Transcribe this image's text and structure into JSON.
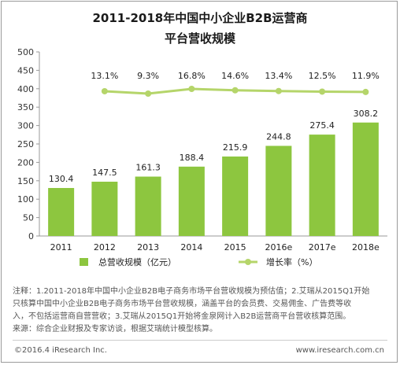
{
  "chart_data": {
    "type": "bar",
    "title_line1": "2011-2018年中国中小企业B2B运营商",
    "title_line2": "平台营收规模",
    "categories": [
      "2011",
      "2012",
      "2013",
      "2014",
      "2015",
      "2016e",
      "2017e",
      "2018e"
    ],
    "series": [
      {
        "name": "总营收规模（亿元）",
        "type": "bar",
        "values": [
          130.4,
          147.5,
          161.3,
          188.4,
          215.9,
          244.8,
          275.4,
          308.2
        ],
        "labels": [
          "130.4",
          "147.5",
          "161.3",
          "188.4",
          "215.9",
          "244.8",
          "275.4",
          "308.2"
        ]
      },
      {
        "name": "增长率（%）",
        "type": "line",
        "values": [
          null,
          13.1,
          9.3,
          16.8,
          14.6,
          13.4,
          12.5,
          11.9
        ],
        "labels": [
          "",
          "13.1%",
          "9.3%",
          "16.8%",
          "14.6%",
          "13.4%",
          "12.5%",
          "11.9%"
        ]
      }
    ],
    "ylim": [
      0,
      500
    ],
    "yticks": [
      "0",
      "50",
      "100",
      "150",
      "200",
      "250",
      "300",
      "350",
      "400",
      "450",
      "500"
    ],
    "grid": false,
    "legend_position": "bottom",
    "colors": {
      "bar": "#8dc63f",
      "line": "#b5d56a"
    }
  },
  "notes": [
    "注释：1.2011-2018年中国中小企业B2B电子商务市场平台营收规模为预估值；2.艾瑞从2015Q1开始",
    "只核算中国中小企业B2B电子商务市场平台营收规模，涵盖平台的会员费、交易佣金、广告费等收",
    "入，不包括运营商自营营收；3.艾瑞从2015Q1开始将金泉网计入B2B运营商平台营收核算范围。",
    "来源：综合企业财报及专家访谈，根据艾瑞统计模型核算。"
  ],
  "footer": {
    "left": "©2016.4 iResearch Inc.",
    "right": "www.iresearch.com.cn"
  }
}
